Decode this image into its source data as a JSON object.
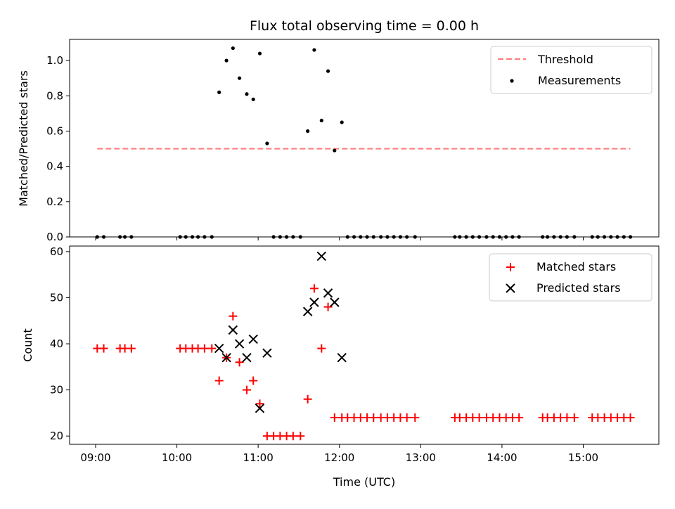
{
  "chart_data": {
    "title": "Flux total observing time = 0.00 h",
    "xlabel": "Time (UTC)",
    "x_ticks": [
      {
        "h": 9,
        "label": "09:00"
      },
      {
        "h": 10,
        "label": "10:00"
      },
      {
        "h": 11,
        "label": "11:00"
      },
      {
        "h": 12,
        "label": "12:00"
      },
      {
        "h": 13,
        "label": "13:00"
      },
      {
        "h": 14,
        "label": "14:00"
      },
      {
        "h": 15,
        "label": "15:00"
      }
    ],
    "xlim": [
      8.68,
      15.93
    ],
    "panels": [
      {
        "type": "scatter",
        "ylabel": "Matched/Predicted stars",
        "ylim": [
          0.0,
          1.12
        ],
        "y_ticks": [
          0.0,
          0.2,
          0.4,
          0.6,
          0.8,
          1.0
        ],
        "y_tick_labels": [
          "0.0",
          "0.2",
          "0.4",
          "0.6",
          "0.8",
          "1.0"
        ],
        "threshold": {
          "label": "Threshold",
          "value": 0.5,
          "x_start": 9.02,
          "x_end": 15.58,
          "color": "#ff7f7f"
        },
        "measurements": {
          "label": "Measurements",
          "color": "#000000",
          "points": [
            [
              9.02,
              0
            ],
            [
              9.1,
              0
            ],
            [
              9.3,
              0
            ],
            [
              9.36,
              0
            ],
            [
              9.44,
              0
            ],
            [
              10.04,
              0
            ],
            [
              10.11,
              0
            ],
            [
              10.19,
              0
            ],
            [
              10.26,
              0
            ],
            [
              10.34,
              0
            ],
            [
              10.43,
              0
            ],
            [
              10.52,
              0.82
            ],
            [
              10.61,
              1.0
            ],
            [
              10.69,
              1.07
            ],
            [
              10.77,
              0.9
            ],
            [
              10.86,
              0.81
            ],
            [
              10.94,
              0.78
            ],
            [
              11.02,
              1.04
            ],
            [
              11.11,
              0.53
            ],
            [
              11.19,
              0
            ],
            [
              11.27,
              0
            ],
            [
              11.35,
              0
            ],
            [
              11.43,
              0
            ],
            [
              11.52,
              0
            ],
            [
              11.61,
              0.6
            ],
            [
              11.69,
              1.06
            ],
            [
              11.78,
              0.66
            ],
            [
              11.86,
              0.94
            ],
            [
              11.94,
              0.49
            ],
            [
              12.03,
              0.65
            ],
            [
              12.1,
              0
            ],
            [
              12.18,
              0
            ],
            [
              12.26,
              0
            ],
            [
              12.34,
              0
            ],
            [
              12.42,
              0
            ],
            [
              12.51,
              0
            ],
            [
              12.59,
              0
            ],
            [
              12.67,
              0
            ],
            [
              12.75,
              0
            ],
            [
              12.83,
              0
            ],
            [
              12.93,
              0
            ],
            [
              13.42,
              0
            ],
            [
              13.48,
              0
            ],
            [
              13.56,
              0
            ],
            [
              13.64,
              0
            ],
            [
              13.72,
              0
            ],
            [
              13.81,
              0
            ],
            [
              13.89,
              0
            ],
            [
              13.97,
              0
            ],
            [
              14.05,
              0
            ],
            [
              14.13,
              0
            ],
            [
              14.21,
              0
            ],
            [
              14.5,
              0
            ],
            [
              14.56,
              0
            ],
            [
              14.64,
              0
            ],
            [
              14.72,
              0
            ],
            [
              14.8,
              0
            ],
            [
              14.89,
              0
            ],
            [
              15.11,
              0
            ],
            [
              15.18,
              0
            ],
            [
              15.26,
              0
            ],
            [
              15.34,
              0
            ],
            [
              15.42,
              0
            ],
            [
              15.5,
              0
            ],
            [
              15.58,
              0
            ]
          ]
        }
      },
      {
        "type": "scatter",
        "ylabel": "Count",
        "ylim": [
          18.2,
          61.2
        ],
        "y_ticks": [
          20,
          30,
          40,
          50,
          60
        ],
        "y_tick_labels": [
          "20",
          "30",
          "40",
          "50",
          "60"
        ],
        "series": [
          {
            "name": "Matched stars",
            "marker": "+",
            "color": "#ff0000",
            "points": [
              [
                9.02,
                39
              ],
              [
                9.1,
                39
              ],
              [
                9.3,
                39
              ],
              [
                9.36,
                39
              ],
              [
                9.44,
                39
              ],
              [
                10.04,
                39
              ],
              [
                10.11,
                39
              ],
              [
                10.19,
                39
              ],
              [
                10.26,
                39
              ],
              [
                10.34,
                39
              ],
              [
                10.43,
                39
              ],
              [
                10.52,
                32
              ],
              [
                10.61,
                37
              ],
              [
                10.69,
                46
              ],
              [
                10.77,
                36
              ],
              [
                10.86,
                30
              ],
              [
                10.94,
                32
              ],
              [
                11.02,
                27
              ],
              [
                11.11,
                20
              ],
              [
                11.19,
                20
              ],
              [
                11.27,
                20
              ],
              [
                11.35,
                20
              ],
              [
                11.43,
                20
              ],
              [
                11.52,
                20
              ],
              [
                11.61,
                28
              ],
              [
                11.69,
                52
              ],
              [
                11.78,
                39
              ],
              [
                11.86,
                48
              ],
              [
                11.94,
                24
              ],
              [
                12.03,
                24
              ],
              [
                12.1,
                24
              ],
              [
                12.18,
                24
              ],
              [
                12.26,
                24
              ],
              [
                12.34,
                24
              ],
              [
                12.42,
                24
              ],
              [
                12.51,
                24
              ],
              [
                12.59,
                24
              ],
              [
                12.67,
                24
              ],
              [
                12.75,
                24
              ],
              [
                12.83,
                24
              ],
              [
                12.93,
                24
              ],
              [
                13.42,
                24
              ],
              [
                13.48,
                24
              ],
              [
                13.56,
                24
              ],
              [
                13.64,
                24
              ],
              [
                13.72,
                24
              ],
              [
                13.81,
                24
              ],
              [
                13.89,
                24
              ],
              [
                13.97,
                24
              ],
              [
                14.05,
                24
              ],
              [
                14.13,
                24
              ],
              [
                14.21,
                24
              ],
              [
                14.5,
                24
              ],
              [
                14.56,
                24
              ],
              [
                14.64,
                24
              ],
              [
                14.72,
                24
              ],
              [
                14.8,
                24
              ],
              [
                14.89,
                24
              ],
              [
                15.11,
                24
              ],
              [
                15.18,
                24
              ],
              [
                15.26,
                24
              ],
              [
                15.34,
                24
              ],
              [
                15.42,
                24
              ],
              [
                15.5,
                24
              ],
              [
                15.58,
                24
              ]
            ]
          },
          {
            "name": "Predicted stars",
            "marker": "x",
            "color": "#000000",
            "points": [
              [
                10.52,
                39
              ],
              [
                10.61,
                37
              ],
              [
                10.69,
                43
              ],
              [
                10.77,
                40
              ],
              [
                10.86,
                37
              ],
              [
                10.94,
                41
              ],
              [
                11.02,
                26
              ],
              [
                11.11,
                38
              ],
              [
                11.61,
                47
              ],
              [
                11.69,
                49
              ],
              [
                11.78,
                59
              ],
              [
                11.86,
                51
              ],
              [
                11.94,
                49
              ],
              [
                12.03,
                37
              ]
            ]
          }
        ]
      }
    ]
  }
}
